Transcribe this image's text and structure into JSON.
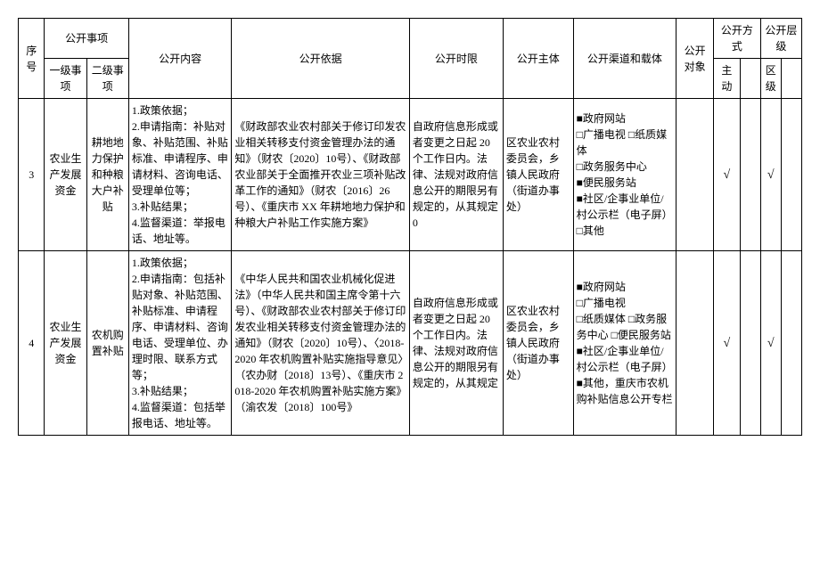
{
  "headers": {
    "seq": "序号",
    "matter": "公开事项",
    "matter_l1": "一级事项",
    "matter_l2": "二级事项",
    "content": "公开内容",
    "basis": "公开依据",
    "timelimit": "公开时限",
    "subject": "公开主体",
    "channel": "公开渠道和载体",
    "target": "公开对象",
    "method": "公开方式",
    "level": "公开层级",
    "active": "主动",
    "district": "区级"
  },
  "rows": [
    {
      "seq": "3",
      "l1": "农业生产发展资金",
      "l2": "耕地地力保护和种粮大户补贴",
      "content": "1.政策依据；\n2.申请指南：补贴对象、补贴范围、补贴标准、申请程序、申请材料、咨询电话、受理单位等；\n3.补贴结果；\n4.监督渠道：举报电话、地址等。",
      "basis": "《财政部农业农村部关于修订印发农业相关转移支付资金管理办法的通知》（财农〔2020〕10号）、《财政部农业部关于全面推开农业三项补贴改革工作的通知》（财农〔2016〕26号）、《重庆市 XX 年耕地地力保护和种粮大户补贴工作实施方案》",
      "timelimit": "自政府信息形成或者变更之日起 20 个工作日内。法律、法规对政府信息公开的期限另有规定的，从其规定 0",
      "subject": "区农业农村委员会，乡镇人民政府（街道办事处）",
      "channel": "■政府网站\n□广播电视 □纸质媒体\n□政务服务中心\n■便民服务站\n■社区/企事业单位/村公示栏（电子屏）\n□其他",
      "target_check": "",
      "active_check": "√",
      "method_blank": "",
      "district_check": "√"
    },
    {
      "seq": "4",
      "l1": "农业生产发展资金",
      "l2": "农机购置补贴",
      "content": "1.政策依据；\n2.申请指南：包括补贴对象、补贴范围、补贴标准、申请程序、申请材料、咨询电话、受理单位、办理时限、联系方式等；\n3.补贴结果；\n4.监督渠道：包括举报电话、地址等。",
      "basis": "《中华人民共和国农业机械化促进法》（中华人民共和国主席令第十六号）、《财政部农业农村部关于修订印发农业相关转移支付资金管理办法的通知》（财农〔2020〕10号）、〈2018-2020 年农机购置补贴实施指导意见〉（农办财〔2018〕13号）、《重庆市 2018-2020 年农机购置补贴实施方案》（渝农发〔2018〕100号》",
      "timelimit": "自政府信息形成或者变更之日起 20 个工作日内。法律、法规对政府信息公开的期限另有规定的，从其规定",
      "subject": "区农业农村委员会，乡镇人民政府（街道办事处）",
      "channel": "■政府网站\n□广播电视\n□纸质媒体 □政务服务中心 □便民服务站\n■社区/企事业单位/村公示栏（电子屏）\n■其他，重庆市农机购补贴信息公开专栏",
      "target_check": "",
      "active_check": "√",
      "method_blank": "",
      "district_check": "√"
    }
  ],
  "colwidths": {
    "seq": 28,
    "l1": 45,
    "l2": 45,
    "content": 110,
    "basis": 190,
    "timelimit": 100,
    "subject": 75,
    "channel": 110,
    "target": 40,
    "active": 28,
    "method_blank": 22,
    "district": 22,
    "level_blank": 22
  }
}
